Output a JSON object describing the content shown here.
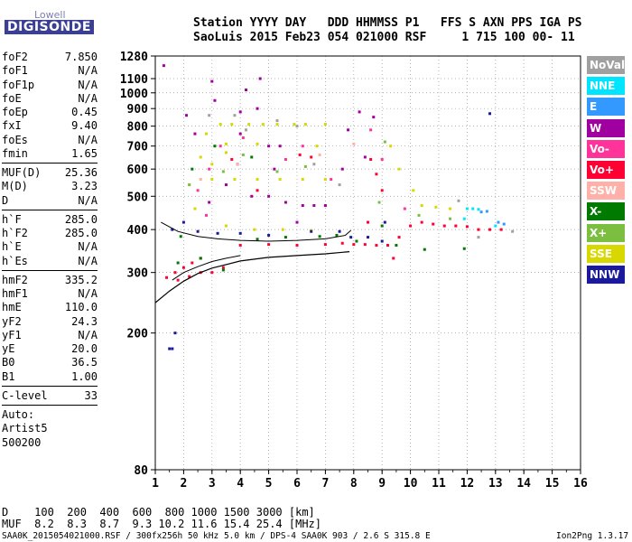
{
  "logo": {
    "line1": "Lowell",
    "line2": "DIGISONDE"
  },
  "header": {
    "row1": "Station YYYY DAY   DDD HHMMSS P1   FFS S AXN PPS IGA PS",
    "row2": "SaoLuis 2015 Feb23 054 021000 RSF     1 715 100 00- 11"
  },
  "params": {
    "group1": [
      {
        "label": "foF2",
        "value": "7.850"
      },
      {
        "label": "foF1",
        "value": "N/A"
      },
      {
        "label": "foF1p",
        "value": "N/A"
      },
      {
        "label": "foE",
        "value": "N/A"
      },
      {
        "label": "foEp",
        "value": "0.45"
      },
      {
        "label": "fxI",
        "value": "9.40"
      },
      {
        "label": "foEs",
        "value": "N/A"
      },
      {
        "label": "fmin",
        "value": "1.65"
      }
    ],
    "group2": [
      {
        "label": "MUF(D)",
        "value": "25.36"
      },
      {
        "label": "M(D)",
        "value": "3.23"
      },
      {
        "label": "D",
        "value": "N/A"
      }
    ],
    "group3": [
      {
        "label": "h`F",
        "value": "285.0"
      },
      {
        "label": "h`F2",
        "value": "285.0"
      },
      {
        "label": "h`E",
        "value": "N/A"
      },
      {
        "label": "h`Es",
        "value": "N/A"
      }
    ],
    "group4": [
      {
        "label": "hmF2",
        "value": "335.2"
      },
      {
        "label": "hmF1",
        "value": "N/A"
      },
      {
        "label": "hmE",
        "value": "110.0"
      },
      {
        "label": "yF2",
        "value": "24.3"
      },
      {
        "label": "yF1",
        "value": "N/A"
      },
      {
        "label": "yE",
        "value": "20.0"
      },
      {
        "label": "B0",
        "value": "36.5"
      },
      {
        "label": "B1",
        "value": "1.00"
      }
    ],
    "clevel": {
      "label": "C-level",
      "value": "33"
    },
    "auto": [
      "Auto:",
      "Artist5",
      "500200"
    ]
  },
  "legend": [
    {
      "label": "NoVal",
      "color": "#a0a0a0"
    },
    {
      "label": "NNE",
      "color": "#00e5ff"
    },
    {
      "label": "E",
      "color": "#3399ff"
    },
    {
      "label": "W",
      "color": "#a000a0"
    },
    {
      "label": "Vo-",
      "color": "#ff3399"
    },
    {
      "label": "Vo+",
      "color": "#ff0033"
    },
    {
      "label": "SSW",
      "color": "#ffb0a8"
    },
    {
      "label": "X-",
      "color": "#007a00"
    },
    {
      "label": "X+",
      "color": "#7cbf40"
    },
    {
      "label": "SSE",
      "color": "#d8d800"
    },
    {
      "label": "NNW",
      "color": "#1a1a9a"
    }
  ],
  "muf_table": {
    "row1": "D    100  200  400  600  800 1000 1500 3000 [km]",
    "row2": "MUF  8.2  8.3  8.7  9.3 10.2 11.6 15.4 25.4 [MHz]"
  },
  "footer": {
    "left": "SAA0K_2015054021000.RSF / 300fx256h 50 kHz 5.0 km / DPS-4 SAA0K 903 / 2.6 S 315.8 E",
    "right": "Ion2Png 1.3.17"
  },
  "chart_data": {
    "type": "scatter",
    "title": "",
    "xlabel": "",
    "ylabel": "",
    "xlim": [
      1,
      16
    ],
    "ylim": [
      80,
      1280
    ],
    "y_scale": "log",
    "x_ticks": [
      1,
      2,
      3,
      4,
      5,
      6,
      7,
      8,
      9,
      10,
      11,
      12,
      13,
      14,
      15,
      16
    ],
    "y_ticks": [
      80,
      200,
      300,
      400,
      500,
      600,
      700,
      800,
      900,
      1000,
      1100,
      1280
    ],
    "grid": true,
    "profile_curve": {
      "x": [
        1.0,
        1.5,
        2.0,
        2.5,
        3.0,
        4.0,
        5.0,
        6.0,
        7.0,
        7.85
      ],
      "y": [
        245,
        265,
        283,
        298,
        309,
        324,
        332,
        336,
        340,
        345
      ]
    },
    "trace_curve_1": {
      "x": [
        1.2,
        1.8,
        2.5,
        3.2,
        4.0,
        5.0,
        6.0,
        7.0,
        7.7,
        7.9
      ],
      "y": [
        420,
        395,
        382,
        376,
        372,
        370,
        372,
        376,
        385,
        398
      ]
    },
    "trace_curve_2": {
      "x": [
        1.6,
        2.0,
        2.5,
        3.0,
        3.5,
        4.0
      ],
      "y": [
        285,
        300,
        312,
        323,
        330,
        336
      ]
    },
    "series": [
      {
        "name": "SSE",
        "points": [
          [
            3.3,
            810
          ],
          [
            3.7,
            810
          ],
          [
            4.3,
            810
          ],
          [
            4.8,
            810
          ],
          [
            5.3,
            810
          ],
          [
            5.9,
            810
          ],
          [
            6.3,
            810
          ],
          [
            7.0,
            810
          ],
          [
            3.5,
            710
          ],
          [
            4.6,
            710
          ],
          [
            6.7,
            700
          ],
          [
            3.0,
            560
          ],
          [
            3.8,
            560
          ],
          [
            4.6,
            560
          ],
          [
            5.4,
            560
          ],
          [
            6.2,
            560
          ],
          [
            7.0,
            560
          ],
          [
            3.5,
            410
          ],
          [
            4.5,
            400
          ],
          [
            5.5,
            400
          ],
          [
            6.5,
            398
          ],
          [
            2.6,
            650
          ],
          [
            2.8,
            760
          ],
          [
            9.6,
            600
          ],
          [
            10.1,
            520
          ],
          [
            10.4,
            470
          ],
          [
            10.9,
            465
          ],
          [
            11.4,
            460
          ],
          [
            2.2,
            540
          ],
          [
            2.4,
            460
          ],
          [
            3.0,
            620
          ],
          [
            3.5,
            670
          ],
          [
            9.3,
            700
          ]
        ]
      },
      {
        "name": "W",
        "points": [
          [
            3.0,
            1080
          ],
          [
            3.1,
            950
          ],
          [
            4.2,
            1020
          ],
          [
            4.7,
            1100
          ],
          [
            4.0,
            880
          ],
          [
            4.6,
            900
          ],
          [
            5.0,
            700
          ],
          [
            5.4,
            700
          ],
          [
            5.2,
            600
          ],
          [
            5.6,
            480
          ],
          [
            6.2,
            470
          ],
          [
            6.6,
            470
          ],
          [
            7.0,
            470
          ],
          [
            8.2,
            880
          ],
          [
            8.4,
            650
          ],
          [
            8.7,
            850
          ],
          [
            7.8,
            780
          ],
          [
            4.0,
            760
          ],
          [
            3.5,
            540
          ],
          [
            4.4,
            500
          ],
          [
            5.0,
            500
          ],
          [
            6.0,
            420
          ],
          [
            1.3,
            1200
          ],
          [
            7.6,
            600
          ],
          [
            2.1,
            860
          ],
          [
            2.4,
            760
          ],
          [
            2.9,
            480
          ],
          [
            3.9,
            620
          ]
        ]
      },
      {
        "name": "Vo+",
        "points": [
          [
            1.7,
            300
          ],
          [
            2.0,
            310
          ],
          [
            2.3,
            320
          ],
          [
            2.6,
            330
          ],
          [
            3.0,
            300
          ],
          [
            3.4,
            310
          ],
          [
            1.8,
            285
          ],
          [
            2.2,
            292
          ],
          [
            2.6,
            300
          ],
          [
            4.0,
            360
          ],
          [
            5.0,
            362
          ],
          [
            6.0,
            360
          ],
          [
            7.0,
            362
          ],
          [
            7.6,
            365
          ],
          [
            8.0,
            362
          ],
          [
            8.4,
            362
          ],
          [
            8.8,
            360
          ],
          [
            9.2,
            360
          ],
          [
            10.0,
            410
          ],
          [
            10.4,
            420
          ],
          [
            10.8,
            415
          ],
          [
            11.2,
            410
          ],
          [
            11.6,
            410
          ],
          [
            12.0,
            408
          ],
          [
            12.4,
            400
          ],
          [
            12.8,
            400
          ],
          [
            13.2,
            400
          ],
          [
            9.6,
            380
          ],
          [
            9.4,
            330
          ],
          [
            8.6,
            640
          ],
          [
            8.8,
            580
          ],
          [
            9.0,
            520
          ],
          [
            8.5,
            420
          ],
          [
            6.1,
            660
          ],
          [
            6.5,
            650
          ],
          [
            3.7,
            640
          ],
          [
            4.6,
            520
          ],
          [
            1.4,
            290
          ]
        ]
      },
      {
        "name": "Vo-",
        "points": [
          [
            2.5,
            520
          ],
          [
            2.9,
            600
          ],
          [
            3.3,
            700
          ],
          [
            4.1,
            740
          ],
          [
            5.6,
            640
          ],
          [
            6.2,
            700
          ],
          [
            7.2,
            560
          ],
          [
            8.6,
            780
          ],
          [
            9.0,
            640
          ],
          [
            9.8,
            460
          ],
          [
            2.8,
            440
          ]
        ]
      },
      {
        "name": "X-",
        "points": [
          [
            1.8,
            320
          ],
          [
            2.6,
            330
          ],
          [
            3.4,
            305
          ],
          [
            4.6,
            375
          ],
          [
            5.6,
            380
          ],
          [
            6.8,
            382
          ],
          [
            7.4,
            385
          ],
          [
            8.1,
            370
          ],
          [
            9.5,
            360
          ],
          [
            9.0,
            410
          ],
          [
            1.9,
            382
          ],
          [
            2.3,
            600
          ],
          [
            3.1,
            700
          ],
          [
            4.4,
            650
          ],
          [
            11.9,
            352
          ],
          [
            10.5,
            350
          ]
        ]
      },
      {
        "name": "X+",
        "points": [
          [
            2.2,
            540
          ],
          [
            3.4,
            590
          ],
          [
            4.1,
            660
          ],
          [
            5.3,
            590
          ],
          [
            6.3,
            610
          ],
          [
            8.9,
            480
          ],
          [
            9.1,
            720
          ],
          [
            10.3,
            440
          ],
          [
            11.4,
            430
          ]
        ]
      },
      {
        "name": "NNW",
        "points": [
          [
            1.6,
            400
          ],
          [
            2.0,
            420
          ],
          [
            2.5,
            395
          ],
          [
            3.2,
            390
          ],
          [
            4.0,
            390
          ],
          [
            5.0,
            385
          ],
          [
            6.5,
            395
          ],
          [
            7.5,
            395
          ],
          [
            7.9,
            380
          ],
          [
            8.5,
            380
          ],
          [
            9.0,
            370
          ],
          [
            9.1,
            420
          ],
          [
            1.5,
            180
          ],
          [
            1.6,
            180
          ],
          [
            1.7,
            200
          ],
          [
            12.8,
            870
          ]
        ]
      },
      {
        "name": "E",
        "points": [
          [
            12.5,
            450
          ],
          [
            12.7,
            452
          ],
          [
            13.1,
            420
          ],
          [
            13.3,
            415
          ]
        ]
      },
      {
        "name": "NNE",
        "points": [
          [
            12.2,
            460
          ],
          [
            12.4,
            458
          ],
          [
            13.0,
            410
          ],
          [
            11.9,
            430
          ],
          [
            12.0,
            460
          ]
        ]
      },
      {
        "name": "SSW",
        "points": [
          [
            2.6,
            560
          ],
          [
            3.9,
            620
          ],
          [
            6.8,
            660
          ],
          [
            8.0,
            710
          ]
        ]
      },
      {
        "name": "NoVal",
        "points": [
          [
            2.9,
            860
          ],
          [
            3.8,
            860
          ],
          [
            4.2,
            780
          ],
          [
            5.3,
            830
          ],
          [
            6.0,
            800
          ],
          [
            6.6,
            620
          ],
          [
            7.5,
            540
          ],
          [
            12.4,
            380
          ],
          [
            13.6,
            395
          ],
          [
            11.7,
            485
          ]
        ]
      }
    ]
  }
}
